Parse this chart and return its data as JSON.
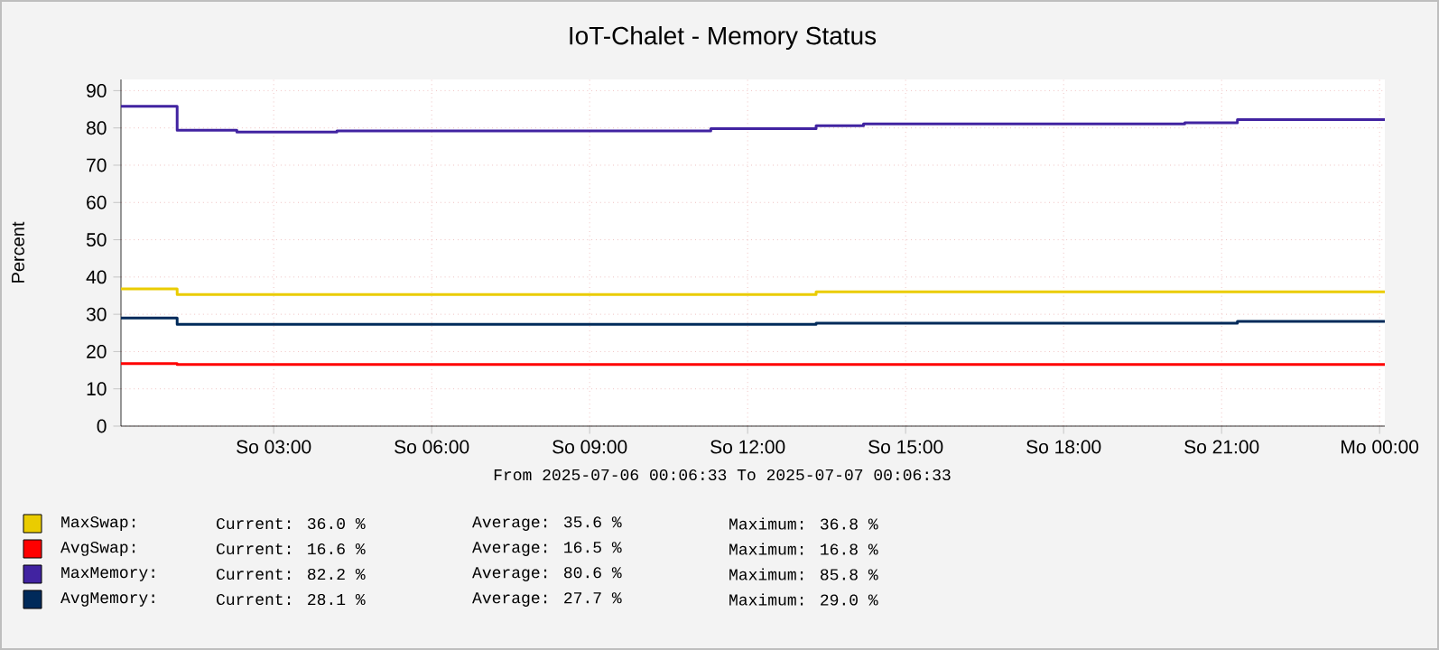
{
  "chart_data": {
    "type": "step",
    "title": "IoT-Chalet - Memory Status",
    "ylabel": "Percent",
    "xlim": [
      "2025-07-06T00:06",
      "2025-07-07T00:06"
    ],
    "ylim": [
      0,
      93
    ],
    "xticks": [
      {
        "value": "2025-07-06T03:00",
        "label": "So 03:00"
      },
      {
        "value": "2025-07-06T06:00",
        "label": "So 06:00"
      },
      {
        "value": "2025-07-06T09:00",
        "label": "So 09:00"
      },
      {
        "value": "2025-07-06T12:00",
        "label": "So 12:00"
      },
      {
        "value": "2025-07-06T15:00",
        "label": "So 15:00"
      },
      {
        "value": "2025-07-06T18:00",
        "label": "So 18:00"
      },
      {
        "value": "2025-07-06T21:00",
        "label": "So 21:00"
      },
      {
        "value": "2025-07-07T00:00",
        "label": "Mo 00:00"
      }
    ],
    "yticks": [
      0,
      10,
      20,
      30,
      40,
      50,
      60,
      70,
      80,
      90
    ],
    "grid": true,
    "legend": "bottom",
    "series": [
      {
        "name": "MaxSwap:",
        "color": "#eacc00",
        "x": [
          "2025-07-06T00:06",
          "2025-07-06T01:10",
          "2025-07-06T13:18",
          "2025-07-07T00:06"
        ],
        "values": [
          36.8,
          35.3,
          36.0,
          36.0
        ]
      },
      {
        "name": "AvgSwap:",
        "color": "#ff0000",
        "x": [
          "2025-07-06T00:06",
          "2025-07-06T01:10",
          "2025-07-07T00:06"
        ],
        "values": [
          16.8,
          16.5,
          16.5
        ]
      },
      {
        "name": "MaxMemory:",
        "color": "#4123a1",
        "x": [
          "2025-07-06T00:06",
          "2025-07-06T01:10",
          "2025-07-06T02:18",
          "2025-07-06T04:12",
          "2025-07-06T11:18",
          "2025-07-06T13:18",
          "2025-07-06T14:12",
          "2025-07-06T20:18",
          "2025-07-06T21:18",
          "2025-07-07T00:06"
        ],
        "values": [
          85.8,
          79.4,
          78.9,
          79.2,
          79.8,
          80.6,
          81.1,
          81.4,
          82.2,
          82.2
        ]
      },
      {
        "name": "AvgMemory:",
        "color": "#002a5a",
        "x": [
          "2025-07-06T00:06",
          "2025-07-06T01:10",
          "2025-07-06T13:18",
          "2025-07-06T21:18",
          "2025-07-07T00:06"
        ],
        "values": [
          29.0,
          27.3,
          27.6,
          28.1,
          28.1
        ]
      }
    ],
    "annotations": [
      "From 2025-07-06 00:06:33 To 2025-07-07 00:06:33",
      "Current: 36.0 %",
      "Average: 35.6 %",
      "Maximum: 36.8 %",
      "Current: 16.6 %",
      "Average: 16.5 %",
      "Maximum: 16.8 %",
      "Current: 82.2 %",
      "Average: 80.6 %",
      "Maximum: 85.8 %",
      "Current: 28.1 %",
      "Average: 27.7 %",
      "Maximum: 29.0 %"
    ]
  }
}
